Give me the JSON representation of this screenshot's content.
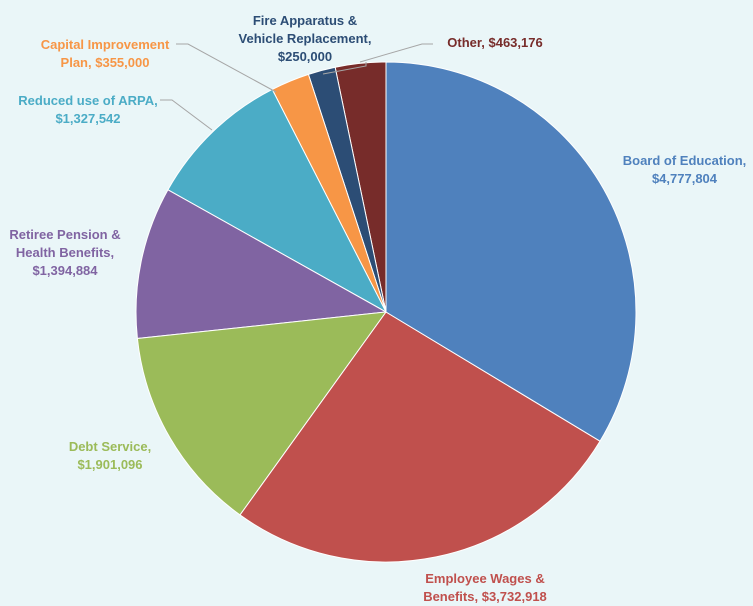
{
  "chart_data": {
    "type": "pie",
    "categories": [
      "Board of Education,",
      "Employee Wages & Benefits,",
      "Debt Service,",
      "Retiree Pension & Health Benefits,",
      "Reduced use of ARPA,",
      "Capital Improvement Plan,",
      "Fire Apparatus & Vehicle Replacement,",
      "Other,"
    ],
    "values": [
      4777804,
      3732918,
      1901096,
      1394884,
      1327542,
      355000,
      250000,
      463176
    ],
    "value_labels": [
      "$4,777,804",
      "$3,732,918",
      "$1,901,096",
      "$1,394,884",
      "$1,327,542",
      "$355,000",
      "$250,000",
      "$463,176"
    ],
    "colors": [
      "#4f81bd",
      "#c0504d",
      "#9bbb59",
      "#8064a2",
      "#4bacc6",
      "#f79646",
      "#2c4d75",
      "#772c2a"
    ]
  }
}
